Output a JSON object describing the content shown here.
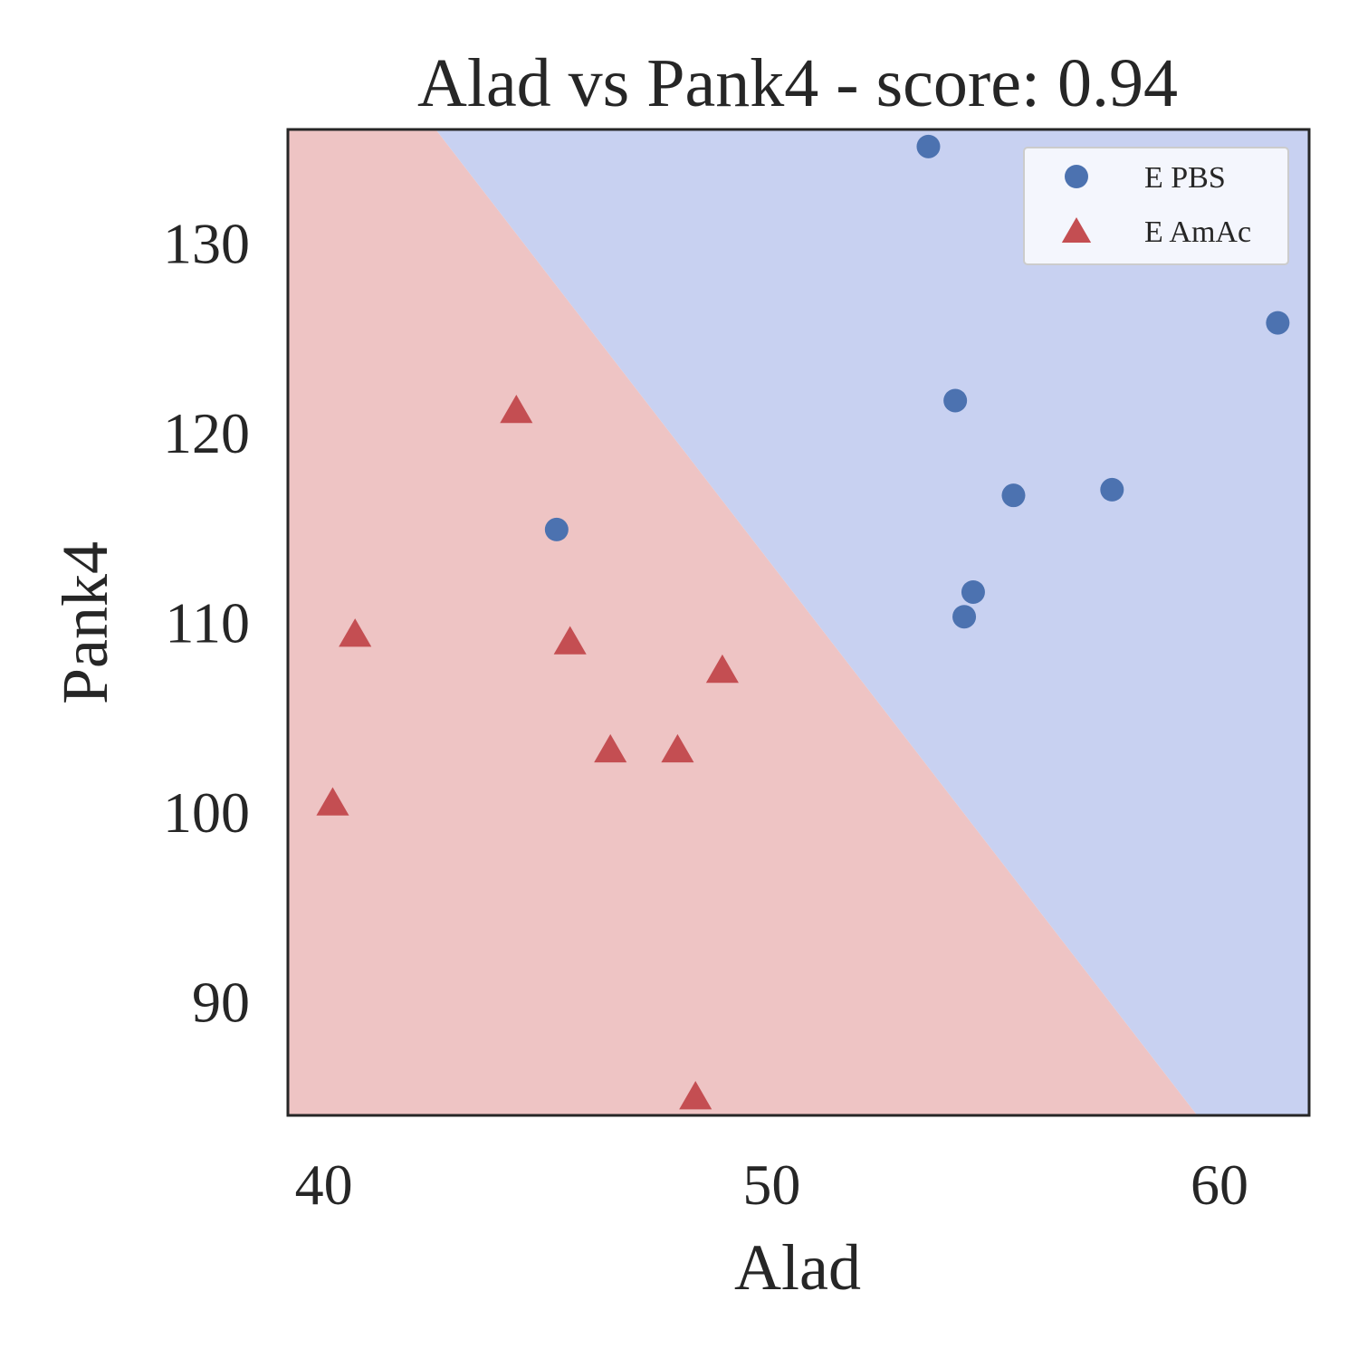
{
  "chart_data": {
    "type": "scatter",
    "title": "Alad vs Pank4 - score: 0.94",
    "xlabel": "Alad",
    "ylabel": "Pank4",
    "xlim": [
      39.2,
      62.0
    ],
    "ylim": [
      84.0,
      136.0
    ],
    "xticks": [
      40,
      50,
      60
    ],
    "yticks": [
      90,
      100,
      110,
      120,
      130
    ],
    "grid": false,
    "legend_position": "top-right",
    "decision_boundary": {
      "points": [
        [
          42.5,
          136.0
        ],
        [
          59.5,
          84.0
        ]
      ],
      "region_colors": {
        "E PBS": "#c8d1f1",
        "E AmAc": "#eec4c4"
      }
    },
    "series": [
      {
        "name": "E PBS",
        "marker": "circle",
        "color": "#4c72b0",
        "points": [
          [
            53.5,
            135.1
          ],
          [
            54.1,
            121.7
          ],
          [
            55.4,
            116.7
          ],
          [
            57.6,
            117.0
          ],
          [
            54.5,
            111.6
          ],
          [
            54.3,
            110.3
          ],
          [
            45.2,
            114.9
          ],
          [
            61.3,
            125.8
          ]
        ]
      },
      {
        "name": "E AmAc",
        "marker": "triangle",
        "color": "#c44e52",
        "points": [
          [
            44.3,
            121.2
          ],
          [
            40.7,
            109.4
          ],
          [
            45.5,
            109.0
          ],
          [
            48.9,
            107.5
          ],
          [
            46.4,
            103.3
          ],
          [
            47.9,
            103.3
          ],
          [
            40.2,
            100.5
          ],
          [
            48.3,
            85.0
          ]
        ]
      }
    ]
  }
}
